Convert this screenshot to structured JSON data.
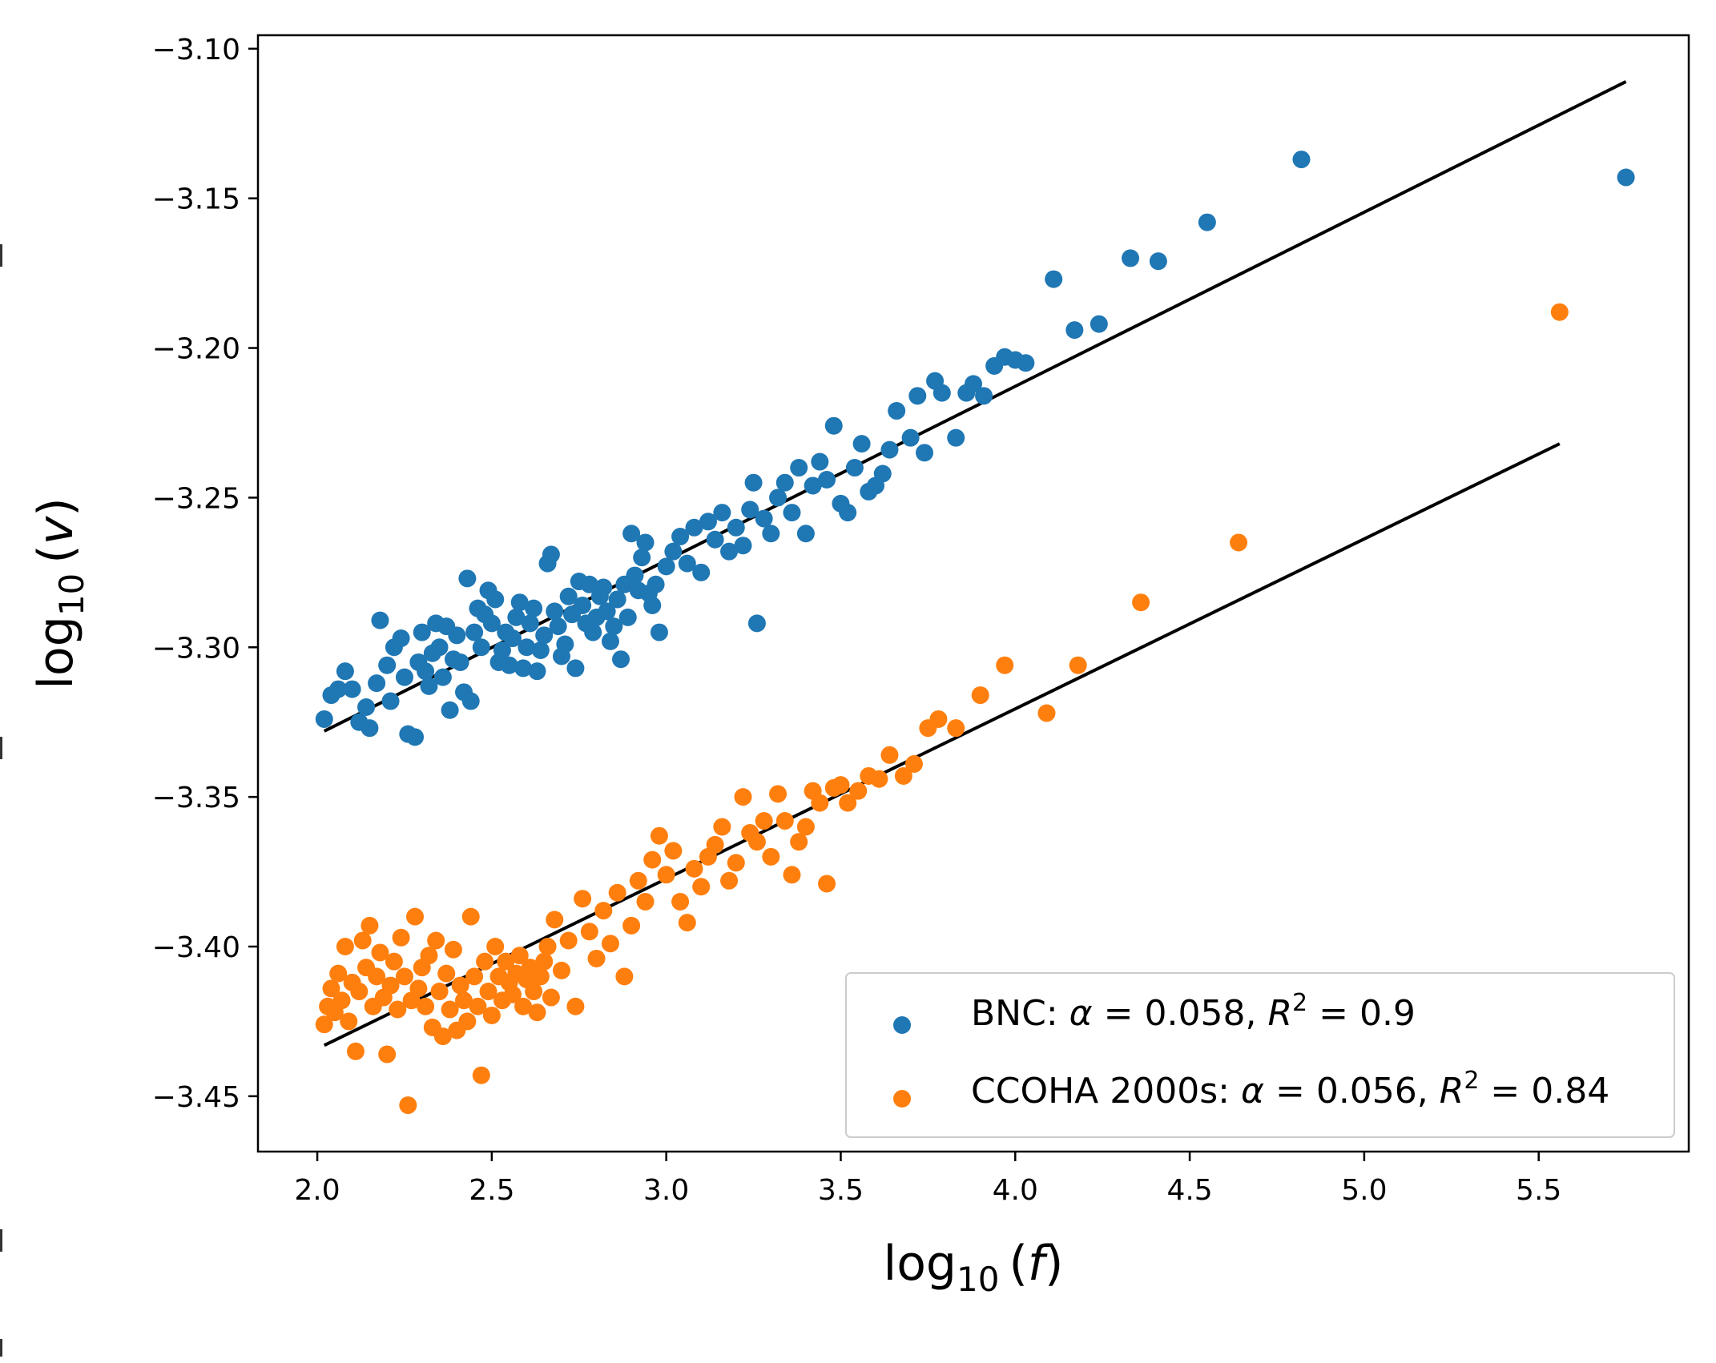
{
  "chart_data": {
    "type": "scatter",
    "title": "",
    "xlabel": {
      "base": "log",
      "sub": "10",
      "open": "(",
      "var": "f",
      "close": ")"
    },
    "ylabel": {
      "base": "log",
      "sub": "10",
      "open": "(",
      "var": "v",
      "close": ")"
    },
    "xlim": [
      1.83,
      5.93
    ],
    "ylim": [
      -3.4685,
      -3.0955
    ],
    "x_ticks": [
      2.0,
      2.5,
      3.0,
      3.5,
      4.0,
      4.5,
      5.0,
      5.5
    ],
    "x_tick_labels": [
      "2.0",
      "2.5",
      "3.0",
      "3.5",
      "4.0",
      "4.5",
      "5.0",
      "5.5"
    ],
    "y_ticks": [
      -3.1,
      -3.15,
      -3.2,
      -3.25,
      -3.3,
      -3.35,
      -3.4,
      -3.45
    ],
    "y_tick_labels": [
      "−3.10",
      "−3.15",
      "−3.20",
      "−3.25",
      "−3.30",
      "−3.35",
      "−3.40",
      "−3.45"
    ],
    "grid": false,
    "legend_position": "lower-right",
    "series": [
      {
        "name": "BNC",
        "legend": {
          "prefix": "BNC: ",
          "alpha_sym": "α",
          "alpha_eq": " = 0.058, ",
          "r_sym": "R",
          "r_sup": "2",
          "r_eq": " = 0.9"
        },
        "color": "#1f77b4",
        "fit": {
          "x": [
            2.02,
            5.75
          ],
          "y": [
            -3.328,
            -3.111
          ]
        },
        "points": [
          [
            2.02,
            -3.324
          ],
          [
            2.04,
            -3.316
          ],
          [
            2.06,
            -3.314
          ],
          [
            2.08,
            -3.308
          ],
          [
            2.1,
            -3.314
          ],
          [
            2.12,
            -3.325
          ],
          [
            2.14,
            -3.32
          ],
          [
            2.15,
            -3.327
          ],
          [
            2.17,
            -3.312
          ],
          [
            2.18,
            -3.291
          ],
          [
            2.2,
            -3.306
          ],
          [
            2.21,
            -3.318
          ],
          [
            2.22,
            -3.3
          ],
          [
            2.24,
            -3.297
          ],
          [
            2.25,
            -3.31
          ],
          [
            2.26,
            -3.329
          ],
          [
            2.28,
            -3.33
          ],
          [
            2.29,
            -3.305
          ],
          [
            2.3,
            -3.295
          ],
          [
            2.31,
            -3.308
          ],
          [
            2.32,
            -3.313
          ],
          [
            2.33,
            -3.302
          ],
          [
            2.34,
            -3.292
          ],
          [
            2.35,
            -3.3
          ],
          [
            2.36,
            -3.31
          ],
          [
            2.37,
            -3.293
          ],
          [
            2.38,
            -3.321
          ],
          [
            2.39,
            -3.304
          ],
          [
            2.4,
            -3.296
          ],
          [
            2.41,
            -3.305
          ],
          [
            2.42,
            -3.315
          ],
          [
            2.43,
            -3.277
          ],
          [
            2.44,
            -3.318
          ],
          [
            2.45,
            -3.295
          ],
          [
            2.46,
            -3.287
          ],
          [
            2.47,
            -3.3
          ],
          [
            2.48,
            -3.289
          ],
          [
            2.49,
            -3.281
          ],
          [
            2.5,
            -3.292
          ],
          [
            2.51,
            -3.284
          ],
          [
            2.52,
            -3.305
          ],
          [
            2.53,
            -3.301
          ],
          [
            2.54,
            -3.295
          ],
          [
            2.55,
            -3.306
          ],
          [
            2.56,
            -3.297
          ],
          [
            2.57,
            -3.29
          ],
          [
            2.58,
            -3.285
          ],
          [
            2.59,
            -3.307
          ],
          [
            2.6,
            -3.3
          ],
          [
            2.61,
            -3.292
          ],
          [
            2.62,
            -3.287
          ],
          [
            2.63,
            -3.308
          ],
          [
            2.64,
            -3.301
          ],
          [
            2.65,
            -3.296
          ],
          [
            2.66,
            -3.272
          ],
          [
            2.67,
            -3.269
          ],
          [
            2.68,
            -3.288
          ],
          [
            2.69,
            -3.293
          ],
          [
            2.7,
            -3.303
          ],
          [
            2.71,
            -3.299
          ],
          [
            2.72,
            -3.283
          ],
          [
            2.73,
            -3.289
          ],
          [
            2.74,
            -3.307
          ],
          [
            2.75,
            -3.278
          ],
          [
            2.76,
            -3.286
          ],
          [
            2.77,
            -3.292
          ],
          [
            2.78,
            -3.279
          ],
          [
            2.79,
            -3.295
          ],
          [
            2.8,
            -3.29
          ],
          [
            2.81,
            -3.283
          ],
          [
            2.82,
            -3.28
          ],
          [
            2.83,
            -3.288
          ],
          [
            2.84,
            -3.298
          ],
          [
            2.85,
            -3.293
          ],
          [
            2.86,
            -3.284
          ],
          [
            2.87,
            -3.304
          ],
          [
            2.88,
            -3.279
          ],
          [
            2.89,
            -3.29
          ],
          [
            2.9,
            -3.262
          ],
          [
            2.91,
            -3.276
          ],
          [
            2.92,
            -3.281
          ],
          [
            2.93,
            -3.27
          ],
          [
            2.94,
            -3.265
          ],
          [
            2.95,
            -3.282
          ],
          [
            2.96,
            -3.286
          ],
          [
            2.97,
            -3.279
          ],
          [
            2.98,
            -3.295
          ],
          [
            3.0,
            -3.273
          ],
          [
            3.02,
            -3.268
          ],
          [
            3.04,
            -3.263
          ],
          [
            3.06,
            -3.272
          ],
          [
            3.08,
            -3.26
          ],
          [
            3.1,
            -3.275
          ],
          [
            3.12,
            -3.258
          ],
          [
            3.14,
            -3.264
          ],
          [
            3.16,
            -3.255
          ],
          [
            3.18,
            -3.268
          ],
          [
            3.2,
            -3.26
          ],
          [
            3.22,
            -3.266
          ],
          [
            3.24,
            -3.254
          ],
          [
            3.25,
            -3.245
          ],
          [
            3.26,
            -3.292
          ],
          [
            3.28,
            -3.257
          ],
          [
            3.3,
            -3.262
          ],
          [
            3.32,
            -3.25
          ],
          [
            3.34,
            -3.245
          ],
          [
            3.36,
            -3.255
          ],
          [
            3.38,
            -3.24
          ],
          [
            3.4,
            -3.262
          ],
          [
            3.42,
            -3.246
          ],
          [
            3.44,
            -3.238
          ],
          [
            3.46,
            -3.244
          ],
          [
            3.48,
            -3.226
          ],
          [
            3.5,
            -3.252
          ],
          [
            3.52,
            -3.255
          ],
          [
            3.54,
            -3.24
          ],
          [
            3.56,
            -3.232
          ],
          [
            3.58,
            -3.248
          ],
          [
            3.6,
            -3.246
          ],
          [
            3.62,
            -3.242
          ],
          [
            3.64,
            -3.234
          ],
          [
            3.66,
            -3.221
          ],
          [
            3.7,
            -3.23
          ],
          [
            3.72,
            -3.216
          ],
          [
            3.74,
            -3.235
          ],
          [
            3.77,
            -3.211
          ],
          [
            3.79,
            -3.215
          ],
          [
            3.83,
            -3.23
          ],
          [
            3.86,
            -3.215
          ],
          [
            3.88,
            -3.212
          ],
          [
            3.91,
            -3.216
          ],
          [
            3.94,
            -3.206
          ],
          [
            3.97,
            -3.203
          ],
          [
            4.0,
            -3.204
          ],
          [
            4.03,
            -3.205
          ],
          [
            4.11,
            -3.177
          ],
          [
            4.17,
            -3.194
          ],
          [
            4.24,
            -3.192
          ],
          [
            4.33,
            -3.17
          ],
          [
            4.41,
            -3.171
          ],
          [
            4.55,
            -3.158
          ],
          [
            4.82,
            -3.137
          ],
          [
            5.75,
            -3.143
          ]
        ]
      },
      {
        "name": "CCOHA 2000s",
        "legend": {
          "prefix": "CCOHA 2000s: ",
          "alpha_sym": "α",
          "alpha_eq": " = 0.056, ",
          "r_sym": "R",
          "r_sup": "2",
          "r_eq": " = 0.84"
        },
        "color": "#ff7f0e",
        "fit": {
          "x": [
            2.02,
            5.56
          ],
          "y": [
            -3.433,
            -3.232
          ]
        },
        "points": [
          [
            2.02,
            -3.426
          ],
          [
            2.03,
            -3.42
          ],
          [
            2.04,
            -3.414
          ],
          [
            2.05,
            -3.422
          ],
          [
            2.06,
            -3.409
          ],
          [
            2.07,
            -3.418
          ],
          [
            2.08,
            -3.4
          ],
          [
            2.09,
            -3.425
          ],
          [
            2.1,
            -3.412
          ],
          [
            2.11,
            -3.435
          ],
          [
            2.12,
            -3.415
          ],
          [
            2.13,
            -3.398
          ],
          [
            2.14,
            -3.407
          ],
          [
            2.15,
            -3.393
          ],
          [
            2.16,
            -3.42
          ],
          [
            2.17,
            -3.41
          ],
          [
            2.18,
            -3.402
          ],
          [
            2.19,
            -3.417
          ],
          [
            2.2,
            -3.436
          ],
          [
            2.21,
            -3.413
          ],
          [
            2.22,
            -3.405
          ],
          [
            2.23,
            -3.421
          ],
          [
            2.24,
            -3.397
          ],
          [
            2.25,
            -3.41
          ],
          [
            2.26,
            -3.453
          ],
          [
            2.27,
            -3.418
          ],
          [
            2.28,
            -3.39
          ],
          [
            2.29,
            -3.414
          ],
          [
            2.3,
            -3.407
          ],
          [
            2.31,
            -3.42
          ],
          [
            2.32,
            -3.403
          ],
          [
            2.33,
            -3.427
          ],
          [
            2.34,
            -3.398
          ],
          [
            2.35,
            -3.415
          ],
          [
            2.36,
            -3.43
          ],
          [
            2.37,
            -3.409
          ],
          [
            2.38,
            -3.421
          ],
          [
            2.39,
            -3.401
          ],
          [
            2.4,
            -3.428
          ],
          [
            2.41,
            -3.413
          ],
          [
            2.42,
            -3.418
          ],
          [
            2.43,
            -3.425
          ],
          [
            2.44,
            -3.39
          ],
          [
            2.45,
            -3.41
          ],
          [
            2.46,
            -3.42
          ],
          [
            2.47,
            -3.443
          ],
          [
            2.48,
            -3.405
          ],
          [
            2.49,
            -3.415
          ],
          [
            2.5,
            -3.423
          ],
          [
            2.51,
            -3.4
          ],
          [
            2.52,
            -3.41
          ],
          [
            2.53,
            -3.418
          ],
          [
            2.54,
            -3.405
          ],
          [
            2.55,
            -3.412
          ],
          [
            2.56,
            -3.416
          ],
          [
            2.57,
            -3.409
          ],
          [
            2.58,
            -3.403
          ],
          [
            2.59,
            -3.42
          ],
          [
            2.6,
            -3.411
          ],
          [
            2.61,
            -3.407
          ],
          [
            2.62,
            -3.415
          ],
          [
            2.63,
            -3.422
          ],
          [
            2.64,
            -3.41
          ],
          [
            2.65,
            -3.405
          ],
          [
            2.66,
            -3.4
          ],
          [
            2.67,
            -3.417
          ],
          [
            2.68,
            -3.391
          ],
          [
            2.7,
            -3.408
          ],
          [
            2.72,
            -3.398
          ],
          [
            2.74,
            -3.42
          ],
          [
            2.76,
            -3.384
          ],
          [
            2.78,
            -3.395
          ],
          [
            2.8,
            -3.404
          ],
          [
            2.82,
            -3.388
          ],
          [
            2.84,
            -3.399
          ],
          [
            2.86,
            -3.382
          ],
          [
            2.88,
            -3.41
          ],
          [
            2.9,
            -3.393
          ],
          [
            2.92,
            -3.378
          ],
          [
            2.94,
            -3.385
          ],
          [
            2.96,
            -3.371
          ],
          [
            2.98,
            -3.363
          ],
          [
            3.0,
            -3.376
          ],
          [
            3.02,
            -3.368
          ],
          [
            3.04,
            -3.385
          ],
          [
            3.06,
            -3.392
          ],
          [
            3.08,
            -3.374
          ],
          [
            3.1,
            -3.38
          ],
          [
            3.12,
            -3.37
          ],
          [
            3.14,
            -3.366
          ],
          [
            3.16,
            -3.36
          ],
          [
            3.18,
            -3.378
          ],
          [
            3.2,
            -3.372
          ],
          [
            3.22,
            -3.35
          ],
          [
            3.24,
            -3.362
          ],
          [
            3.26,
            -3.365
          ],
          [
            3.28,
            -3.358
          ],
          [
            3.3,
            -3.37
          ],
          [
            3.32,
            -3.349
          ],
          [
            3.34,
            -3.358
          ],
          [
            3.36,
            -3.376
          ],
          [
            3.38,
            -3.365
          ],
          [
            3.4,
            -3.36
          ],
          [
            3.42,
            -3.348
          ],
          [
            3.44,
            -3.352
          ],
          [
            3.46,
            -3.379
          ],
          [
            3.48,
            -3.347
          ],
          [
            3.5,
            -3.346
          ],
          [
            3.52,
            -3.352
          ],
          [
            3.55,
            -3.348
          ],
          [
            3.58,
            -3.343
          ],
          [
            3.61,
            -3.344
          ],
          [
            3.64,
            -3.336
          ],
          [
            3.68,
            -3.343
          ],
          [
            3.71,
            -3.339
          ],
          [
            3.75,
            -3.327
          ],
          [
            3.78,
            -3.324
          ],
          [
            3.83,
            -3.327
          ],
          [
            3.9,
            -3.316
          ],
          [
            3.97,
            -3.306
          ],
          [
            4.09,
            -3.322
          ],
          [
            4.18,
            -3.306
          ],
          [
            4.36,
            -3.285
          ],
          [
            4.64,
            -3.265
          ],
          [
            5.56,
            -3.188
          ]
        ]
      }
    ]
  }
}
